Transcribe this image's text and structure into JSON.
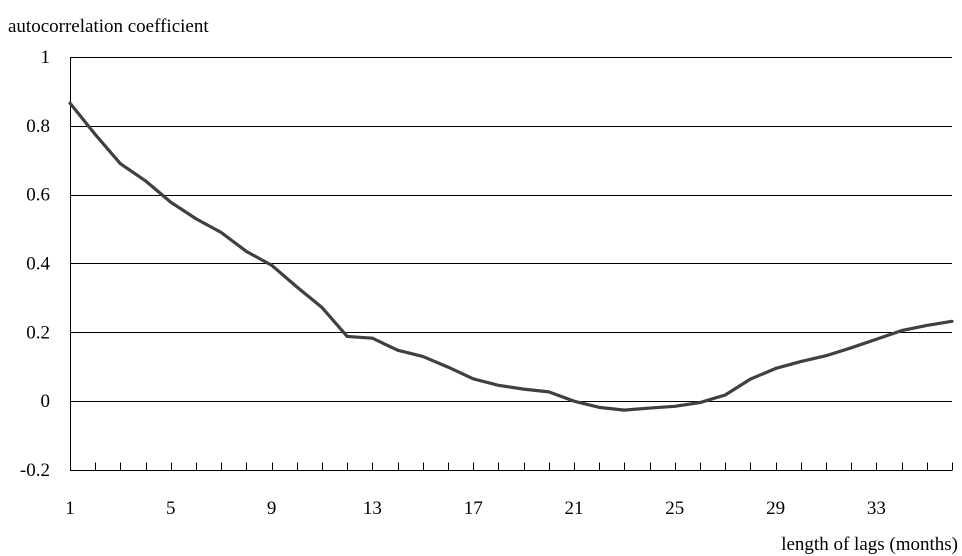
{
  "chart_data": {
    "type": "line",
    "title": "",
    "ylabel": "autocorrelation coefficient",
    "xlabel": "length of lags (months)",
    "ylim": [
      -0.2,
      1
    ],
    "xlim": [
      1,
      36
    ],
    "yticks": [
      -0.2,
      0,
      0.2,
      0.4,
      0.6,
      0.8,
      1
    ],
    "ytick_labels": [
      "-0.2",
      "0",
      "0.2",
      "0.4",
      "0.6",
      "0.8",
      "1"
    ],
    "xtick_labels": [
      "1",
      "5",
      "9",
      "13",
      "17",
      "21",
      "25",
      "29",
      "33"
    ],
    "xtick_values": [
      1,
      5,
      9,
      13,
      17,
      21,
      25,
      29,
      33
    ],
    "grid": true,
    "series": [
      {
        "color": "#404040",
        "x": [
          1,
          2,
          3,
          4,
          5,
          6,
          7,
          8,
          9,
          10,
          11,
          12,
          13,
          14,
          15,
          16,
          17,
          18,
          19,
          20,
          21,
          22,
          23,
          24,
          25,
          26,
          27,
          28,
          29,
          30,
          31,
          32,
          33,
          34,
          35,
          36
        ],
        "values": [
          0.866,
          0.775,
          0.69,
          0.64,
          0.578,
          0.53,
          0.49,
          0.435,
          0.395,
          0.332,
          0.272,
          0.188,
          0.183,
          0.148,
          0.13,
          0.099,
          0.065,
          0.046,
          0.035,
          0.027,
          0.0,
          -0.018,
          -0.026,
          -0.02,
          -0.015,
          -0.004,
          0.018,
          0.064,
          0.095,
          0.115,
          0.132,
          0.155,
          0.18,
          0.205,
          0.22,
          0.232
        ]
      }
    ]
  }
}
